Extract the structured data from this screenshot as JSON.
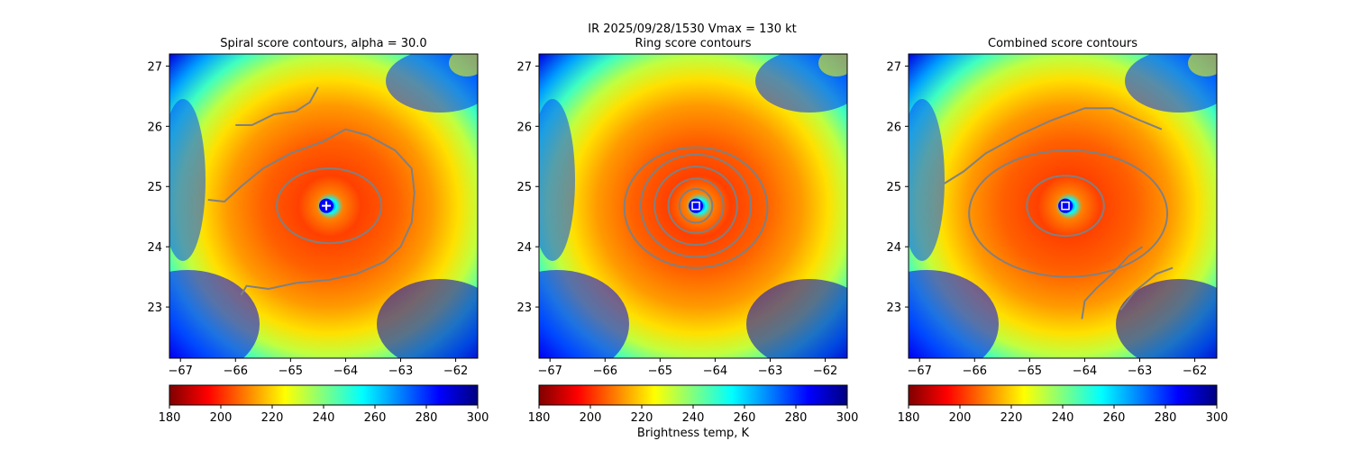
{
  "suptitle_line1": "IR  2025/09/28/1530    Vmax = 130 kt",
  "colorbar_label": "Brightness temp, K",
  "chart_data": [
    {
      "type": "heatmap",
      "title": "Spiral score contours, alpha = 30.0",
      "xlim": [
        -67.2,
        -61.6
      ],
      "ylim": [
        22.15,
        27.2
      ],
      "xticks": [
        -67,
        -66,
        -65,
        -64,
        -63,
        -62
      ],
      "yticks": [
        23,
        24,
        25,
        26,
        27
      ],
      "center": {
        "lon": -64.35,
        "lat": 24.68
      },
      "marker": "plus",
      "contours": [
        {
          "kind": "ring",
          "lon": -64.3,
          "lat": 24.68,
          "rx_deg": 0.95,
          "ry_deg": 0.62
        },
        {
          "kind": "polyline",
          "points": [
            [
              -66.5,
              24.78
            ],
            [
              -66.2,
              24.75
            ],
            [
              -65.9,
              25.0
            ],
            [
              -65.5,
              25.3
            ],
            [
              -65.0,
              25.55
            ],
            [
              -64.4,
              25.75
            ],
            [
              -64.0,
              25.95
            ],
            [
              -63.6,
              25.85
            ],
            [
              -63.1,
              25.6
            ],
            [
              -62.8,
              25.3
            ],
            [
              -62.75,
              24.9
            ],
            [
              -62.8,
              24.4
            ],
            [
              -63.0,
              24.0
            ],
            [
              -63.3,
              23.75
            ],
            [
              -63.8,
              23.55
            ],
            [
              -64.3,
              23.45
            ],
            [
              -64.9,
              23.4
            ],
            [
              -65.4,
              23.3
            ],
            [
              -65.8,
              23.35
            ],
            [
              -65.9,
              23.2
            ]
          ]
        },
        {
          "kind": "polyline",
          "points": [
            [
              -66.0,
              26.02
            ],
            [
              -65.7,
              26.02
            ],
            [
              -65.3,
              26.2
            ],
            [
              -64.9,
              26.25
            ],
            [
              -64.65,
              26.4
            ],
            [
              -64.5,
              26.65
            ]
          ]
        }
      ]
    },
    {
      "type": "heatmap",
      "title": "Ring score contours",
      "xlim": [
        -67.2,
        -61.6
      ],
      "ylim": [
        22.15,
        27.2
      ],
      "xticks": [
        -67,
        -66,
        -65,
        -64,
        -63,
        -62
      ],
      "yticks": [
        23,
        24,
        25,
        26,
        27
      ],
      "center": {
        "lon": -64.35,
        "lat": 24.68
      },
      "marker": "square",
      "contours": [
        {
          "kind": "ring",
          "lon": -64.35,
          "lat": 24.68,
          "rx_deg": 0.3,
          "ry_deg": 0.28
        },
        {
          "kind": "ring",
          "lon": -64.35,
          "lat": 24.68,
          "rx_deg": 0.5,
          "ry_deg": 0.45
        },
        {
          "kind": "ring",
          "lon": -64.35,
          "lat": 24.68,
          "rx_deg": 0.75,
          "ry_deg": 0.65
        },
        {
          "kind": "ring",
          "lon": -64.35,
          "lat": 24.68,
          "rx_deg": 1.0,
          "ry_deg": 0.85
        },
        {
          "kind": "ring",
          "lon": -64.35,
          "lat": 24.65,
          "rx_deg": 1.3,
          "ry_deg": 1.0
        }
      ]
    },
    {
      "type": "heatmap",
      "title": "Combined score contours",
      "xlim": [
        -67.2,
        -61.6
      ],
      "ylim": [
        22.15,
        27.2
      ],
      "xticks": [
        -67,
        -66,
        -65,
        -64,
        -63,
        -62
      ],
      "yticks": [
        23,
        24,
        25,
        26,
        27
      ],
      "center": {
        "lon": -64.35,
        "lat": 24.68
      },
      "marker": "square",
      "contours": [
        {
          "kind": "ring",
          "lon": -64.35,
          "lat": 24.68,
          "rx_deg": 0.7,
          "ry_deg": 0.5
        },
        {
          "kind": "ring",
          "lon": -64.3,
          "lat": 24.55,
          "rx_deg": 1.8,
          "ry_deg": 1.05
        },
        {
          "kind": "polyline",
          "points": [
            [
              -66.55,
              25.05
            ],
            [
              -66.2,
              25.25
            ],
            [
              -65.8,
              25.55
            ],
            [
              -65.2,
              25.85
            ],
            [
              -64.6,
              26.1
            ],
            [
              -64.0,
              26.3
            ],
            [
              -63.5,
              26.3
            ],
            [
              -63.0,
              26.1
            ],
            [
              -62.6,
              25.95
            ]
          ]
        },
        {
          "kind": "polyline",
          "points": [
            [
              -63.35,
              22.95
            ],
            [
              -63.1,
              23.25
            ],
            [
              -62.7,
              23.55
            ],
            [
              -62.4,
              23.65
            ]
          ]
        },
        {
          "kind": "polyline",
          "points": [
            [
              -64.05,
              22.8
            ],
            [
              -64.0,
              23.1
            ],
            [
              -63.8,
              23.3
            ],
            [
              -63.5,
              23.55
            ],
            [
              -63.2,
              23.85
            ],
            [
              -62.95,
              24.0
            ]
          ]
        }
      ]
    }
  ],
  "colorbar": {
    "min": 180,
    "max": 300,
    "ticks": [
      180,
      200,
      220,
      240,
      260,
      280,
      300
    ],
    "colormap": "jet_r",
    "colors": [
      "#800000",
      "#ff0000",
      "#ff8000",
      "#ffff00",
      "#80ff80",
      "#00ffff",
      "#0080ff",
      "#0000ff",
      "#000080"
    ]
  },
  "contour_color": "#808080"
}
